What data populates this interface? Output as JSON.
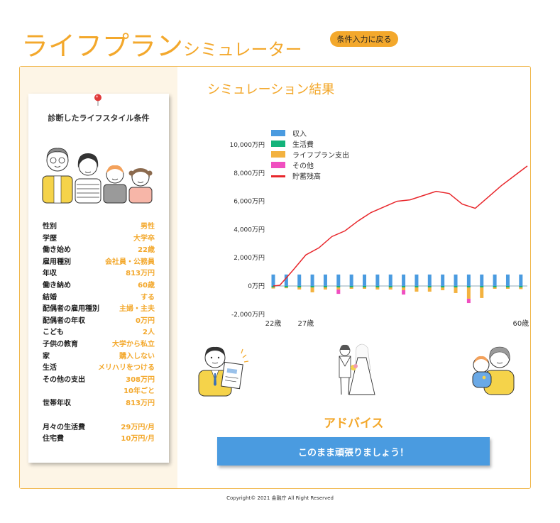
{
  "header": {
    "title_big": "ライフプラン",
    "title_small": "シミュレーター",
    "back_button": "条件入力に戻る"
  },
  "conditions": {
    "title": "診断したライフスタイル条件",
    "rows": [
      {
        "label": "性別",
        "value": "男性"
      },
      {
        "label": "学歴",
        "value": "大学卒"
      },
      {
        "label": "働き始め",
        "value": "22歳"
      },
      {
        "label": "雇用種別",
        "value": "会社員・公務員"
      },
      {
        "label": "年収",
        "value": "813万円"
      },
      {
        "label": "働き納め",
        "value": "60歳"
      },
      {
        "label": "結婚",
        "value": "する"
      },
      {
        "label": "配偶者の雇用種別",
        "value": "主婦・主夫"
      },
      {
        "label": "配偶者の年収",
        "value": "0万円"
      },
      {
        "label": "こども",
        "value": "2人"
      },
      {
        "label": "子供の教育",
        "value": "大学から私立"
      },
      {
        "label": "家",
        "value": "購入しない"
      },
      {
        "label": "生活",
        "value": "メリハリをつける"
      },
      {
        "label": "その他の支出",
        "value": "308万円"
      },
      {
        "label": "",
        "value": "10年ごと"
      },
      {
        "label": "世帯年収",
        "value": "813万円"
      }
    ],
    "rows2": [
      {
        "label": "月々の生活費",
        "value": "29万円/月"
      },
      {
        "label": "住宅費",
        "value": "10万円/月"
      }
    ]
  },
  "result": {
    "title": "シミュレーション結果",
    "advice_title": "アドバイス",
    "advice": "このまま頑張りましょう！"
  },
  "chart_data": {
    "type": "bar",
    "ylim": [
      -2000,
      10000
    ],
    "yticks": [
      -2000,
      0,
      2000,
      4000,
      6000,
      8000,
      10000
    ],
    "ytick_labels": [
      "-2,000万円",
      "0万円",
      "2,000万円",
      "4,000万円",
      "6,000万円",
      "8,000万円",
      "10,000万円"
    ],
    "x_labels": [
      {
        "age": 22,
        "label": "22歳"
      },
      {
        "age": 27,
        "label": "27歳"
      },
      {
        "age": 60,
        "label": "60歳"
      }
    ],
    "legend": [
      {
        "name": "収入",
        "color": "#4a9be0",
        "shape": "box"
      },
      {
        "name": "生活費",
        "color": "#13b37a",
        "shape": "box"
      },
      {
        "name": "ライフプラン支出",
        "color": "#f3b23f",
        "shape": "box"
      },
      {
        "name": "その他",
        "color": "#f04fc0",
        "shape": "box"
      },
      {
        "name": "貯蓄残高",
        "color": "#e8262b",
        "shape": "line"
      }
    ],
    "bars_x": [
      22,
      24,
      26,
      28,
      30,
      32,
      34,
      36,
      38,
      40,
      42,
      44,
      46,
      48,
      50,
      52,
      54,
      56,
      58,
      60
    ],
    "series": [
      {
        "name": "収入",
        "color": "#4a9be0",
        "values": [
          813,
          813,
          813,
          813,
          813,
          813,
          813,
          813,
          813,
          813,
          813,
          813,
          813,
          813,
          813,
          813,
          813,
          813,
          813,
          813
        ]
      },
      {
        "name": "生活費",
        "color": "#13b37a",
        "values": [
          -100,
          -100,
          -100,
          -100,
          -100,
          -100,
          -100,
          -100,
          -100,
          -100,
          -100,
          -100,
          -100,
          -100,
          -100,
          -100,
          -100,
          -100,
          -100,
          -100
        ]
      },
      {
        "name": "ライフプラン支出",
        "color": "#f3b23f",
        "values": [
          -80,
          -60,
          -150,
          -350,
          -150,
          -150,
          -100,
          -100,
          -150,
          -150,
          -200,
          -300,
          -300,
          -200,
          -400,
          -800,
          -750,
          -100,
          -100,
          -120
        ]
      },
      {
        "name": "その他",
        "color": "#f04fc0",
        "values": [
          0,
          0,
          0,
          0,
          0,
          -308,
          0,
          0,
          0,
          0,
          -308,
          0,
          0,
          0,
          0,
          -308,
          0,
          0,
          0,
          0
        ]
      }
    ],
    "line": {
      "name": "貯蓄残高",
      "color": "#e8262b",
      "x": [
        22,
        23,
        25,
        27,
        29,
        31,
        33,
        35,
        37,
        39,
        41,
        43,
        45,
        47,
        49,
        51,
        53,
        55,
        57,
        59,
        61
      ],
      "y": [
        0,
        50,
        1100,
        2200,
        2700,
        3500,
        3900,
        4600,
        5200,
        5600,
        6000,
        6100,
        6400,
        6700,
        6550,
        5800,
        5500,
        6300,
        7100,
        7800,
        8500
      ]
    }
  },
  "copyright": "Copyright© 2021 金融庁 All Right Reserved"
}
